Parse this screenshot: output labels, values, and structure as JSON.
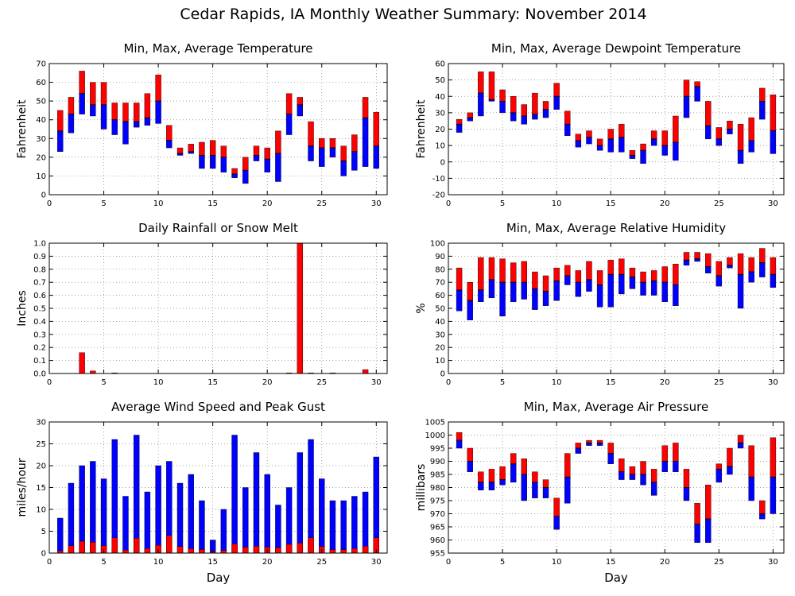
{
  "page_title": "Cedar Rapids, IA Monthly Weather Summary: November 2014",
  "colors": {
    "max": "#ff0000",
    "min": "#0000ff",
    "avg_line": "#000000",
    "grid": "#808080"
  },
  "chart_data": [
    {
      "id": "temp",
      "type": "bar",
      "style": "min-max-average",
      "title": "Min, Max, Average Temperature",
      "xlabel": "",
      "ylabel": "Fahrenheit",
      "xlim": [
        0,
        31
      ],
      "ylim": [
        0,
        70
      ],
      "yticks": [
        0,
        10,
        20,
        30,
        40,
        50,
        60,
        70
      ],
      "xticks": [
        0,
        5,
        10,
        15,
        20,
        25,
        30
      ],
      "grid": true,
      "x": [
        1,
        2,
        3,
        4,
        5,
        6,
        7,
        8,
        9,
        10,
        11,
        12,
        13,
        14,
        15,
        16,
        17,
        18,
        19,
        20,
        21,
        22,
        23,
        24,
        25,
        26,
        27,
        28,
        29,
        30
      ],
      "series": [
        {
          "name": "max",
          "values": [
            45,
            52,
            66,
            60,
            60,
            49,
            49,
            49,
            54,
            64,
            37,
            25,
            27,
            28,
            29,
            26,
            14,
            20,
            26,
            25,
            34,
            54,
            52,
            39,
            30,
            30,
            26,
            32,
            52,
            44
          ]
        },
        {
          "name": "avg",
          "values": [
            34,
            43,
            54,
            48,
            48,
            40,
            39,
            39,
            41,
            50,
            29,
            22,
            23,
            21,
            21,
            20,
            11,
            13,
            21,
            19,
            22,
            43,
            48,
            26,
            25,
            25,
            18,
            23,
            41,
            26
          ]
        },
        {
          "name": "min",
          "values": [
            23,
            33,
            43,
            42,
            35,
            32,
            27,
            36,
            37,
            38,
            25,
            21,
            22,
            14,
            14,
            12,
            9,
            6,
            18,
            12,
            7,
            32,
            42,
            18,
            15,
            20,
            10,
            13,
            15,
            14
          ]
        }
      ]
    },
    {
      "id": "dewpoint",
      "type": "bar",
      "style": "min-max-average",
      "title": "Min, Max, Average Dewpoint Temperature",
      "xlabel": "",
      "ylabel": "Fahrenheit",
      "xlim": [
        0,
        31
      ],
      "ylim": [
        -20,
        60
      ],
      "yticks": [
        -20,
        -10,
        0,
        10,
        20,
        30,
        40,
        50,
        60
      ],
      "xticks": [
        0,
        5,
        10,
        15,
        20,
        25,
        30
      ],
      "grid": true,
      "x": [
        1,
        2,
        3,
        4,
        5,
        6,
        7,
        8,
        9,
        10,
        11,
        12,
        13,
        14,
        15,
        16,
        17,
        18,
        19,
        20,
        21,
        22,
        23,
        24,
        25,
        26,
        27,
        28,
        29,
        30
      ],
      "series": [
        {
          "name": "max",
          "values": [
            26,
            30,
            55,
            55,
            44,
            40,
            35,
            42,
            37,
            48,
            31,
            17,
            19,
            14,
            20,
            23,
            7,
            11,
            19,
            19,
            28,
            50,
            49,
            37,
            21,
            25,
            23,
            27,
            45,
            41
          ]
        },
        {
          "name": "avg",
          "values": [
            23,
            27,
            42,
            38,
            37,
            30,
            28,
            29,
            32,
            40,
            23,
            13,
            15,
            10,
            14,
            15,
            4,
            7,
            14,
            10,
            12,
            40,
            46,
            22,
            14,
            20,
            7,
            13,
            37,
            19
          ]
        },
        {
          "name": "min",
          "values": [
            18,
            25,
            28,
            37,
            30,
            25,
            23,
            26,
            27,
            32,
            16,
            9,
            11,
            7,
            6,
            6,
            2,
            -1,
            10,
            4,
            1,
            27,
            37,
            14,
            10,
            17,
            -1,
            6,
            26,
            5
          ]
        }
      ]
    },
    {
      "id": "rain",
      "type": "bar",
      "style": "simple",
      "title": "Daily Rainfall or Snow Melt",
      "xlabel": "",
      "ylabel": "Inches",
      "xlim": [
        0,
        31
      ],
      "ylim": [
        0,
        1.0
      ],
      "yticks": [
        "0.0",
        "0.1",
        "0.2",
        "0.3",
        "0.4",
        "0.5",
        "0.6",
        "0.7",
        "0.8",
        "0.9",
        "1.0"
      ],
      "xticks": [
        0,
        5,
        10,
        15,
        20,
        25,
        30
      ],
      "grid": true,
      "x": [
        1,
        2,
        3,
        4,
        5,
        6,
        7,
        8,
        9,
        10,
        11,
        12,
        13,
        14,
        15,
        16,
        17,
        18,
        19,
        20,
        21,
        22,
        23,
        24,
        25,
        26,
        27,
        28,
        29,
        30
      ],
      "series": [
        {
          "name": "precip",
          "values": [
            0,
            0,
            0.16,
            0.02,
            0,
            0.005,
            0,
            0,
            0,
            0,
            0,
            0,
            0,
            0,
            0,
            0,
            0,
            0,
            0,
            0,
            0,
            0.005,
            1.0,
            0.005,
            0,
            0.005,
            0,
            0,
            0.03,
            0
          ]
        }
      ]
    },
    {
      "id": "humidity",
      "type": "bar",
      "style": "min-max-average",
      "title": "Min, Max, Average Relative Humidity",
      "xlabel": "",
      "ylabel": "%",
      "xlim": [
        0,
        31
      ],
      "ylim": [
        0,
        100
      ],
      "yticks": [
        0,
        10,
        20,
        30,
        40,
        50,
        60,
        70,
        80,
        90,
        100
      ],
      "xticks": [
        0,
        5,
        10,
        15,
        20,
        25,
        30
      ],
      "grid": true,
      "x": [
        1,
        2,
        3,
        4,
        5,
        6,
        7,
        8,
        9,
        10,
        11,
        12,
        13,
        14,
        15,
        16,
        17,
        18,
        19,
        20,
        21,
        22,
        23,
        24,
        25,
        26,
        27,
        28,
        29,
        30
      ],
      "series": [
        {
          "name": "max",
          "values": [
            81,
            70,
            89,
            89,
            88,
            85,
            86,
            78,
            75,
            81,
            83,
            79,
            86,
            79,
            87,
            88,
            81,
            78,
            79,
            82,
            84,
            93,
            93,
            92,
            86,
            89,
            92,
            89,
            96,
            89
          ]
        },
        {
          "name": "avg",
          "values": [
            64,
            56,
            64,
            72,
            70,
            70,
            70,
            65,
            63,
            71,
            75,
            70,
            72,
            68,
            76,
            76,
            74,
            70,
            71,
            70,
            68,
            87,
            88,
            82,
            75,
            83,
            76,
            78,
            85,
            76
          ]
        },
        {
          "name": "min",
          "values": [
            48,
            41,
            55,
            58,
            44,
            55,
            57,
            49,
            52,
            56,
            68,
            59,
            63,
            51,
            51,
            61,
            65,
            60,
            60,
            55,
            52,
            83,
            86,
            77,
            67,
            81,
            50,
            70,
            74,
            66
          ]
        }
      ]
    },
    {
      "id": "wind",
      "type": "bar",
      "style": "overlay",
      "title": "Average Wind Speed and Peak Gust",
      "xlabel": "Day",
      "ylabel": "miles/hour",
      "xlim": [
        0,
        31
      ],
      "ylim": [
        0,
        30
      ],
      "yticks": [
        0,
        5,
        10,
        15,
        20,
        25,
        30
      ],
      "xticks": [
        0,
        5,
        10,
        15,
        20,
        25,
        30
      ],
      "grid": true,
      "x": [
        1,
        2,
        3,
        4,
        5,
        6,
        7,
        8,
        9,
        10,
        11,
        12,
        13,
        14,
        15,
        16,
        17,
        18,
        19,
        20,
        21,
        22,
        23,
        24,
        25,
        26,
        27,
        28,
        29,
        30
      ],
      "series": [
        {
          "name": "gust",
          "values": [
            8,
            16,
            20,
            21,
            17,
            26,
            13,
            27,
            14,
            20,
            21,
            16,
            18,
            12,
            3,
            10,
            27,
            15,
            23,
            18,
            11,
            15,
            23,
            26,
            17,
            12,
            12,
            13,
            14,
            22
          ]
        },
        {
          "name": "avg",
          "values": [
            0.5,
            1.7,
            2.7,
            2.5,
            1.7,
            3.5,
            0.7,
            3.4,
            1.0,
            1.8,
            4.0,
            1.5,
            1.0,
            0.8,
            0.3,
            0.6,
            2.1,
            1.3,
            1.6,
            1.3,
            1.2,
            2.0,
            2.3,
            3.5,
            1.5,
            0.8,
            0.8,
            1.0,
            1.6,
            3.5
          ]
        }
      ]
    },
    {
      "id": "pressure",
      "type": "bar",
      "style": "min-max-average",
      "title": "Min, Max, Average Air Pressure",
      "xlabel": "Day",
      "ylabel": "millibars",
      "xlim": [
        0,
        31
      ],
      "ylim": [
        955,
        1005
      ],
      "yticks": [
        955,
        960,
        965,
        970,
        975,
        980,
        985,
        990,
        995,
        1000,
        1005
      ],
      "xticks": [
        0,
        5,
        10,
        15,
        20,
        25,
        30
      ],
      "grid": true,
      "x": [
        1,
        2,
        3,
        4,
        5,
        6,
        7,
        8,
        9,
        10,
        11,
        12,
        13,
        14,
        15,
        16,
        17,
        18,
        19,
        20,
        21,
        22,
        23,
        24,
        25,
        26,
        27,
        28,
        29,
        30
      ],
      "series": [
        {
          "name": "max",
          "values": [
            1001,
            995,
            986,
            987,
            988,
            993,
            991,
            986,
            983,
            976,
            993,
            997,
            998,
            998,
            997,
            991,
            988,
            990,
            987,
            996,
            997,
            987,
            974,
            981,
            989,
            995,
            1000,
            996,
            975,
            999
          ]
        },
        {
          "name": "avg",
          "values": [
            998,
            990,
            982,
            982,
            983,
            989,
            985,
            982,
            980,
            969,
            984,
            995,
            997,
            997,
            993,
            986,
            985,
            985,
            982,
            990,
            990,
            980,
            966,
            968,
            987,
            988,
            997,
            984,
            970,
            984
          ]
        },
        {
          "name": "min",
          "values": [
            995,
            986,
            979,
            979,
            981,
            982,
            975,
            976,
            976,
            964,
            974,
            993,
            996,
            996,
            989,
            983,
            983,
            981,
            977,
            986,
            986,
            975,
            959,
            959,
            982,
            985,
            995,
            975,
            968,
            970
          ]
        }
      ]
    }
  ]
}
